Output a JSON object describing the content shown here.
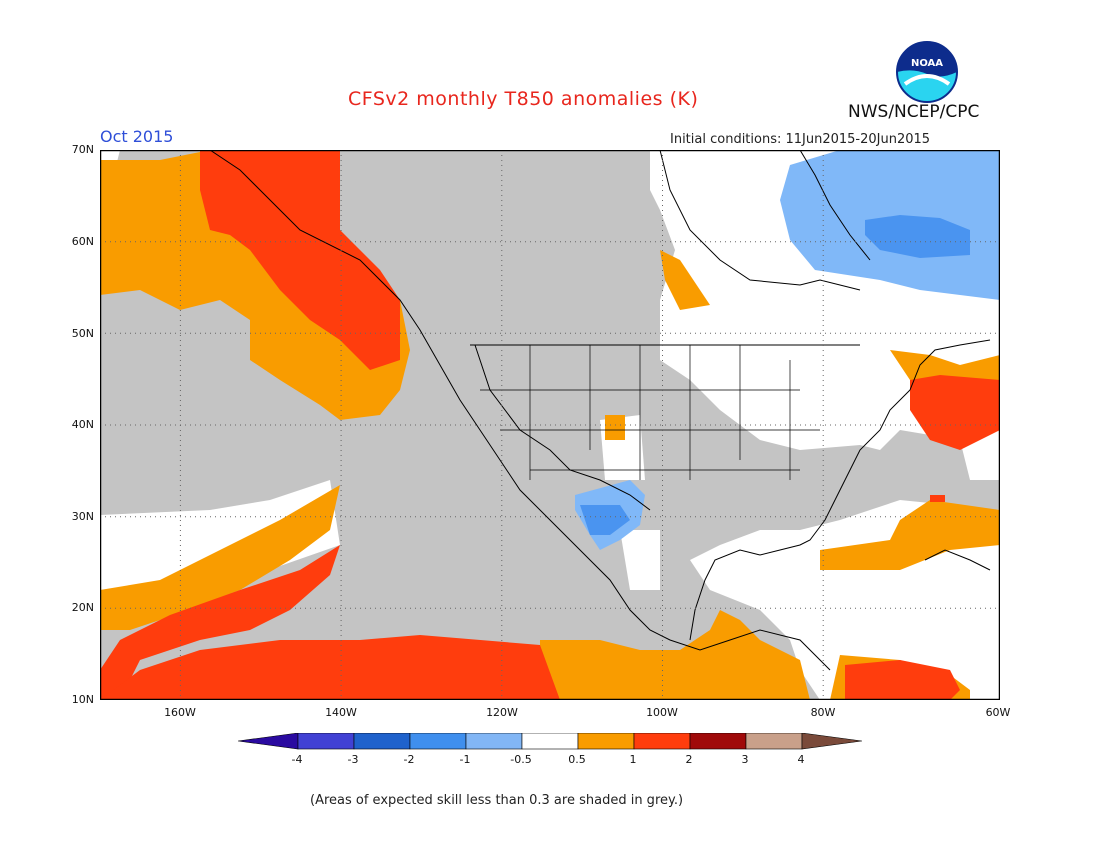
{
  "title": "CFSv2 monthly T850 anomalies (K)",
  "agency": "NWS/NCEP/CPC",
  "logo_text": "NOAA",
  "valid_month": "Oct 2015",
  "initial_conditions": "Initial conditions: 11Jun2015-20Jun2015",
  "footnote": "(Areas of expected skill less than 0.3 are shaded in grey.)",
  "map": {
    "projection": "lat-lon",
    "lon_range": [
      -172,
      -60
    ],
    "lat_range": [
      10,
      70
    ],
    "lat_ticks": [
      "70N",
      "60N",
      "50N",
      "40N",
      "30N",
      "20N",
      "10N"
    ],
    "lon_ticks": [
      "160W",
      "140W",
      "120W",
      "100W",
      "80W",
      "60W"
    ],
    "grid": "dotted",
    "colors": {
      "skill_grey": "#c4c4c4",
      "near_zero": "#ffffff",
      "pos_0_5_to_1": "#f99c00",
      "pos_1_to_2": "#ff3d0d",
      "neg_0_5_to_1": "#80b8f8",
      "neg_1_to_2": "#4a94f0",
      "coast": "#000000"
    }
  },
  "colorbar": {
    "labels": [
      "-4",
      "-3",
      "-2",
      "-1",
      "-0.5",
      "0.5",
      "1",
      "2",
      "3",
      "4"
    ],
    "colors": [
      "#2a0aa0",
      "#4141d4",
      "#1f62cc",
      "#3f8fee",
      "#82b6f5",
      "#ffffff",
      "#f99c00",
      "#ff3d0d",
      "#a00a0a",
      "#c9a08a",
      "#7a4a3a"
    ]
  }
}
